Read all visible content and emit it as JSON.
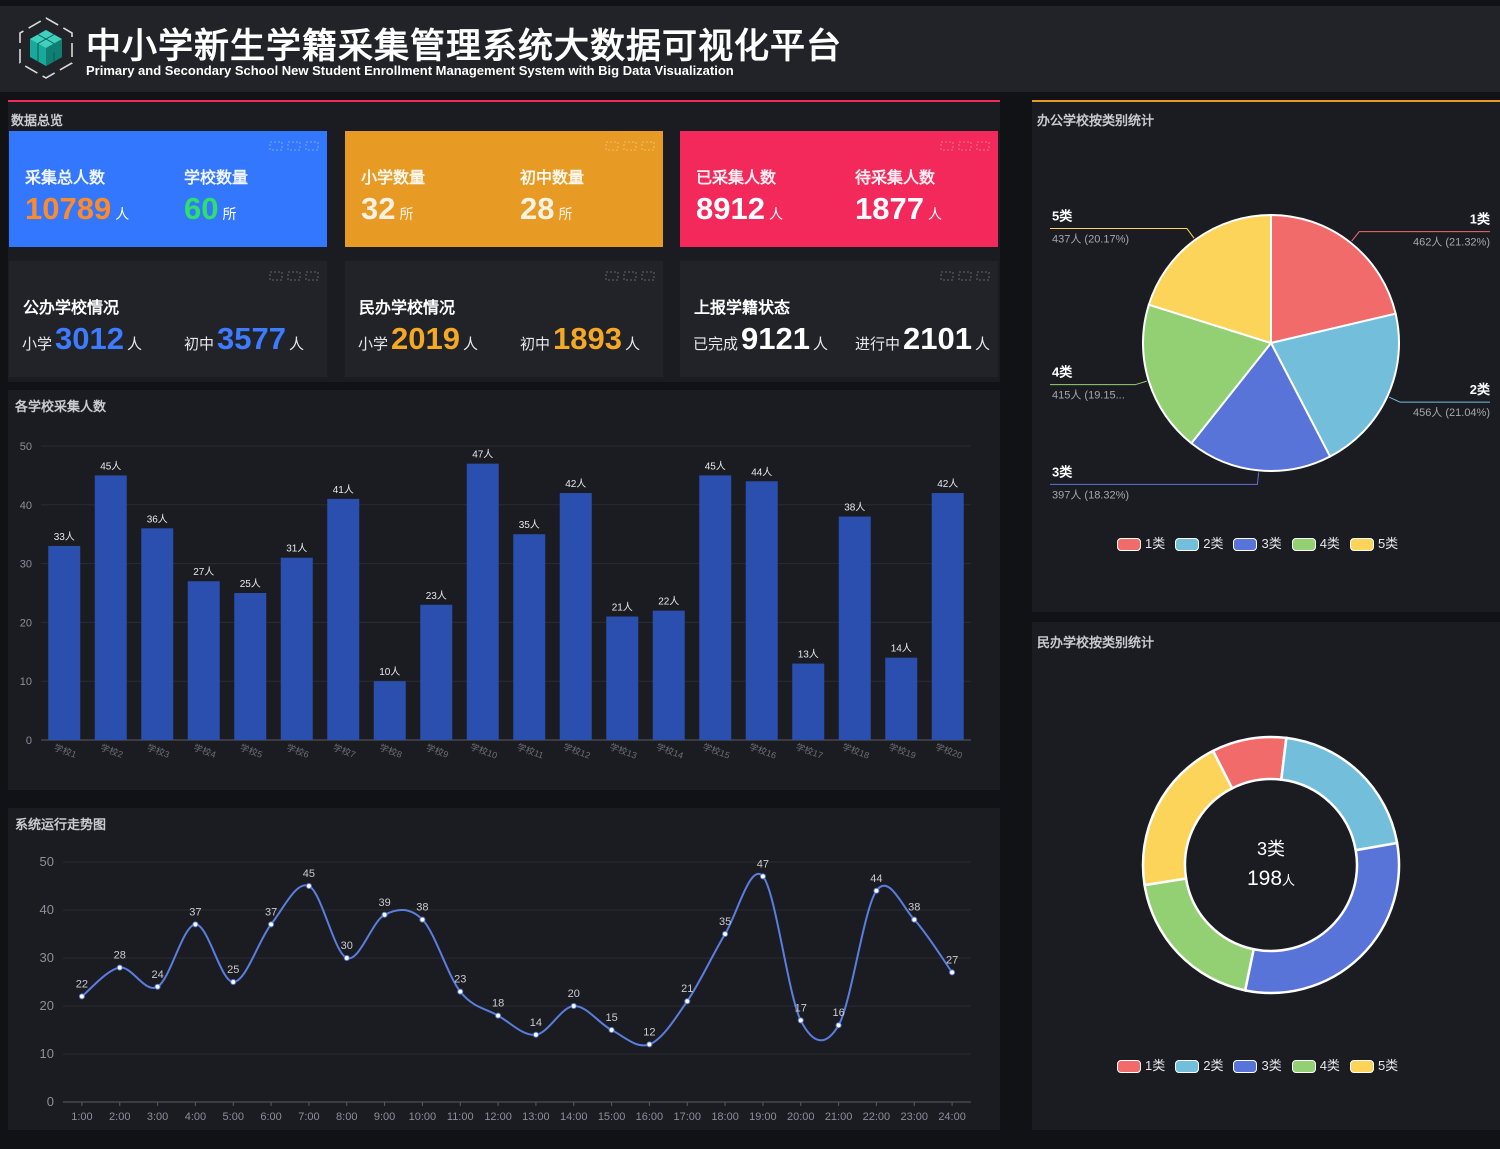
{
  "header": {
    "title": "中小学新生学籍采集管理系统大数据可视化平台",
    "subtitle": "Primary and Secondary School New Student Enrollment Management System with Big Data Visualization"
  },
  "overview": {
    "title": "数据总览",
    "cards": [
      {
        "a_label": "采集总人数",
        "a_value": "10789",
        "a_unit": "人",
        "b_label": "学校数量",
        "b_value": "60",
        "b_unit": "所",
        "color": "#3377ff"
      },
      {
        "a_label": "小学数量",
        "a_value": "32",
        "a_unit": "所",
        "b_label": "初中数量",
        "b_value": "28",
        "b_unit": "所",
        "color": "#e89b24"
      },
      {
        "a_label": "已采集人数",
        "a_value": "8912",
        "a_unit": "人",
        "b_label": "待采集人数",
        "b_value": "1877",
        "b_unit": "人",
        "color": "#f2295a"
      }
    ],
    "status": [
      {
        "title": "公办学校情况",
        "a_label": "小学",
        "a_value": "3012",
        "a_unit": "人",
        "b_label": "初中",
        "b_value": "3577",
        "b_unit": "人",
        "color": "#3d7bff"
      },
      {
        "title": "民办学校情况",
        "a_label": "小学",
        "a_value": "2019",
        "a_unit": "人",
        "b_label": "初中",
        "b_value": "1893",
        "b_unit": "人",
        "color": "#f4a823"
      },
      {
        "title": "上报学籍状态",
        "a_label": "已完成",
        "a_value": "9121",
        "a_unit": "人",
        "b_label": "进行中",
        "b_value": "2101",
        "b_unit": "人",
        "color": "#ffffff"
      }
    ]
  },
  "colors": {
    "bar": "#2a4faf",
    "line": "#5a7ee0",
    "accent_red": "#f2295a",
    "accent_orange": "#e89b24"
  },
  "chart_data": [
    {
      "type": "bar",
      "title": "各学校采集人数",
      "categories": [
        "学校1",
        "学校2",
        "学校3",
        "学校4",
        "学校5",
        "学校6",
        "学校7",
        "学校8",
        "学校9",
        "学校10",
        "学校11",
        "学校12",
        "学校13",
        "学校14",
        "学校15",
        "学校16",
        "学校17",
        "学校18",
        "学校19",
        "学校20"
      ],
      "values": [
        33,
        45,
        36,
        27,
        25,
        31,
        41,
        10,
        23,
        47,
        35,
        42,
        21,
        22,
        45,
        44,
        13,
        38,
        14,
        42
      ],
      "label_suffix": "人",
      "ylim": [
        0,
        50
      ],
      "yticks": [
        "0",
        "10",
        "20",
        "30",
        "40",
        "50"
      ],
      "grid": true
    },
    {
      "type": "line",
      "title": "系统运行走势图",
      "x": [
        "1:00",
        "2:00",
        "3:00",
        "4:00",
        "5:00",
        "6:00",
        "7:00",
        "8:00",
        "9:00",
        "10:00",
        "11:00",
        "12:00",
        "13:00",
        "14:00",
        "15:00",
        "16:00",
        "17:00",
        "18:00",
        "19:00",
        "20:00",
        "21:00",
        "22:00",
        "23:00",
        "24:00"
      ],
      "values": [
        22,
        28,
        24,
        37,
        25,
        37,
        45,
        30,
        39,
        38,
        23,
        18,
        14,
        20,
        15,
        12,
        21,
        35,
        47,
        17,
        16,
        44,
        38,
        27
      ],
      "ylim": [
        0,
        50
      ],
      "yticks": [
        "0",
        "10",
        "20",
        "30",
        "40",
        "50"
      ],
      "grid": true,
      "smooth": true
    },
    {
      "type": "pie",
      "title": "办公学校按类别统计",
      "slices": [
        {
          "name": "1类",
          "value": 462,
          "label": "462人 (21.32%)",
          "color": "#f26b6b"
        },
        {
          "name": "2类",
          "value": 456,
          "label": "456人 (21.04%)",
          "color": "#73bfdb"
        },
        {
          "name": "3类",
          "value": 397,
          "label": "397人 (18.32%)",
          "color": "#5874d8"
        },
        {
          "name": "4类",
          "value": 415,
          "label": "415人 (19.15...",
          "color": "#93d074"
        },
        {
          "name": "5类",
          "value": 437,
          "label": "437人 (20.17%)",
          "color": "#fcd45a"
        }
      ],
      "legend": "bottom"
    },
    {
      "type": "pie",
      "title": "民办学校按类别统计",
      "donut": true,
      "center_label": "3类",
      "center_value": "198",
      "center_unit": "人",
      "slices": [
        {
          "name": "1类",
          "value": 60,
          "color": "#f26b6b"
        },
        {
          "name": "2类",
          "value": 130,
          "color": "#73bfdb"
        },
        {
          "name": "3类",
          "value": 198,
          "color": "#5874d8"
        },
        {
          "name": "4类",
          "value": 123,
          "color": "#93d074"
        },
        {
          "name": "5类",
          "value": 128,
          "color": "#fcd45a"
        }
      ],
      "legend": "bottom"
    }
  ]
}
